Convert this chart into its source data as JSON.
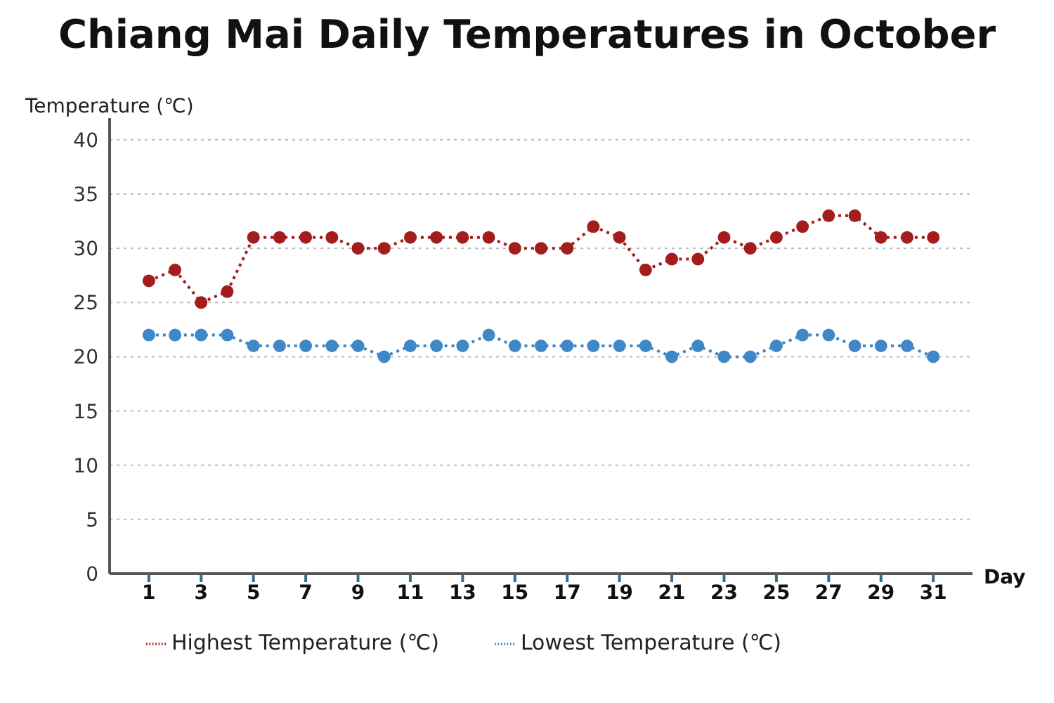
{
  "chart_data": {
    "type": "line",
    "title": "Chiang Mai Daily Temperatures in October",
    "xlabel": "Day",
    "ylabel": "Temperature (℃)",
    "x": [
      1,
      2,
      3,
      4,
      5,
      6,
      7,
      8,
      9,
      10,
      11,
      12,
      13,
      14,
      15,
      16,
      17,
      18,
      19,
      20,
      21,
      22,
      23,
      24,
      25,
      26,
      27,
      28,
      29,
      30,
      31
    ],
    "series": [
      {
        "name": "Highest Temperature (℃)",
        "color": "#a31d1d",
        "values": [
          27,
          28,
          25,
          26,
          31,
          31,
          31,
          31,
          30,
          30,
          31,
          31,
          31,
          31,
          30,
          30,
          30,
          32,
          31,
          28,
          29,
          29,
          31,
          30,
          31,
          32,
          33,
          33,
          31,
          31,
          31
        ]
      },
      {
        "name": "Lowest Temperature (℃)",
        "color": "#3f87c6",
        "values": [
          22,
          22,
          22,
          22,
          21,
          21,
          21,
          21,
          21,
          20,
          21,
          21,
          21,
          22,
          21,
          21,
          21,
          21,
          21,
          21,
          20,
          21,
          20,
          20,
          21,
          22,
          22,
          21,
          21,
          21,
          20
        ]
      }
    ],
    "xlim": [
      -0.5,
      32.5
    ],
    "xticks": [
      1,
      3,
      5,
      7,
      9,
      11,
      13,
      15,
      17,
      19,
      21,
      23,
      25,
      27,
      29,
      31
    ],
    "ylim": [
      0,
      42
    ],
    "yticks": [
      0,
      5,
      10,
      15,
      20,
      25,
      30,
      35,
      40
    ],
    "grid": "y",
    "legend": "bottom",
    "marker": "circle",
    "line_style": "dotted"
  }
}
